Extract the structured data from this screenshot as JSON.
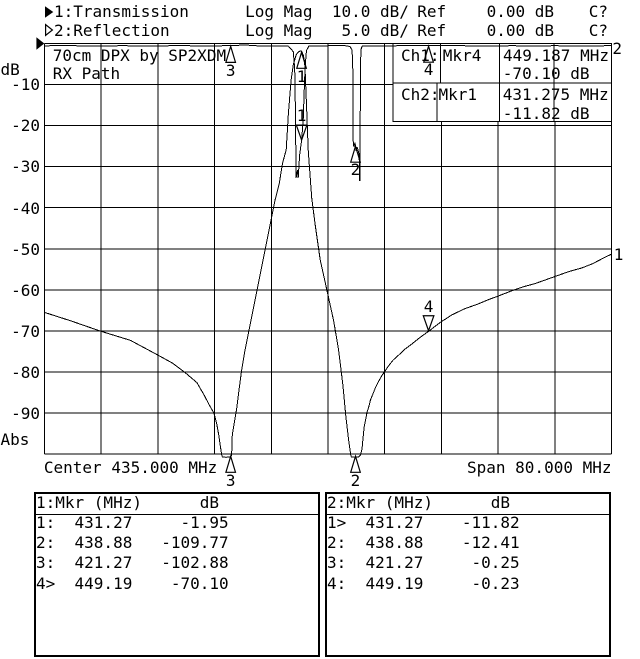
{
  "header": {
    "rows": [
      {
        "trace_marker": "filled-right-triangle",
        "channel": "1:Transmission",
        "format": "Log Mag",
        "scale": "10.0 dB/",
        "ref_label": "Ref",
        "ref_value": "0.00 dB",
        "cal_status": "C?"
      },
      {
        "trace_marker": "hollow-right-triangle",
        "channel": "2:Reflection",
        "format": "Log Mag",
        "scale": "5.0 dB/",
        "ref_label": "Ref",
        "ref_value": "0.00 dB",
        "cal_status": "C?"
      }
    ]
  },
  "readout": {
    "rows": [
      {
        "channel": "Ch1:",
        "marker": "Mkr4",
        "frequency": "449.187 MHz",
        "level": "-70.10 dB"
      },
      {
        "channel": "Ch2:",
        "marker": "Mkr1",
        "frequency": "431.275 MHz",
        "level": "-11.82 dB"
      }
    ]
  },
  "chart_data": {
    "type": "line",
    "title": "70cm DPX by SP2XDM",
    "subtitle": "RX Path",
    "x_axis": {
      "center": 435.0,
      "span": 80.0,
      "min": 395.0,
      "max": 475.0,
      "unit": "MHz",
      "divisions": 10,
      "center_label": "Center 435.000 MHz",
      "span_label": "Span 80.000 MHz"
    },
    "y_axis": {
      "top_label": "dB",
      "bottom_label": "Abs",
      "divisions": 10,
      "tick_labels": [
        "-10",
        "-20",
        "-30",
        "-40",
        "-50",
        "-60",
        "-70",
        "-80",
        "-90"
      ],
      "trace1_db_per_div": 10.0,
      "trace2_db_per_div": 5.0,
      "ref_db": 0.0
    },
    "series": [
      {
        "name": "Transmission",
        "trace": 1,
        "end_label": "1",
        "db_per_div": 10.0,
        "points": [
          [
            395.0,
            -65.5
          ],
          [
            398.6,
            -67.5
          ],
          [
            402.8,
            -70.0
          ],
          [
            407.1,
            -72.3
          ],
          [
            410.9,
            -75.8
          ],
          [
            413.1,
            -77.9
          ],
          [
            414.8,
            -80.1
          ],
          [
            416.5,
            -82.6
          ],
          [
            417.6,
            -85.9
          ],
          [
            418.2,
            -87.9
          ],
          [
            418.9,
            -90.0
          ],
          [
            419.3,
            -92.6
          ],
          [
            419.6,
            -95.6
          ],
          [
            419.8,
            -98.0
          ],
          [
            420.0,
            -100.2
          ],
          [
            420.1,
            -100.7
          ],
          [
            420.6,
            -100.8
          ],
          [
            421.2,
            -100.7
          ],
          [
            421.4,
            -100.4
          ],
          [
            421.5,
            -95.3
          ],
          [
            421.8,
            -92.2
          ],
          [
            422.1,
            -89.1
          ],
          [
            422.4,
            -85.0
          ],
          [
            422.8,
            -79.8
          ],
          [
            423.3,
            -74.6
          ],
          [
            423.9,
            -69.5
          ],
          [
            424.5,
            -64.3
          ],
          [
            425.1,
            -59.1
          ],
          [
            425.7,
            -53.9
          ],
          [
            426.3,
            -48.8
          ],
          [
            426.9,
            -43.6
          ],
          [
            427.5,
            -38.4
          ],
          [
            428.1,
            -34.3
          ],
          [
            428.6,
            -29.1
          ],
          [
            429.1,
            -25.9
          ],
          [
            429.4,
            -17.4
          ],
          [
            429.8,
            -8.9
          ],
          [
            430.1,
            -5.2
          ],
          [
            430.5,
            -2.8
          ],
          [
            430.8,
            -2.1
          ],
          [
            431.1,
            -1.8
          ],
          [
            431.3,
            -1.95
          ],
          [
            431.5,
            -2.8
          ],
          [
            431.7,
            -4.5
          ],
          [
            431.8,
            -7.7
          ],
          [
            432.0,
            -16.2
          ],
          [
            432.2,
            -25.9
          ],
          [
            432.7,
            -37.6
          ],
          [
            433.2,
            -44.2
          ],
          [
            433.9,
            -52.7
          ],
          [
            435.0,
            -61.3
          ],
          [
            435.8,
            -67.6
          ],
          [
            436.5,
            -74.7
          ],
          [
            437.1,
            -83.2
          ],
          [
            437.5,
            -90.5
          ],
          [
            437.9,
            -96.6
          ],
          [
            438.2,
            -100.2
          ],
          [
            438.3,
            -100.7
          ],
          [
            438.8,
            -100.8
          ],
          [
            439.3,
            -100.7
          ],
          [
            439.6,
            -100.2
          ],
          [
            439.8,
            -98.8
          ],
          [
            439.9,
            -97.0
          ],
          [
            440.0,
            -95.3
          ],
          [
            440.1,
            -93.5
          ],
          [
            440.3,
            -91.7
          ],
          [
            440.5,
            -89.9
          ],
          [
            440.8,
            -88.2
          ],
          [
            441.0,
            -86.8
          ],
          [
            441.3,
            -85.5
          ],
          [
            441.7,
            -83.8
          ],
          [
            442.1,
            -82.4
          ],
          [
            442.6,
            -80.9
          ],
          [
            443.0,
            -79.9
          ],
          [
            443.6,
            -78.4
          ],
          [
            444.2,
            -77.1
          ],
          [
            444.9,
            -76.0
          ],
          [
            445.9,
            -74.4
          ],
          [
            446.9,
            -73.1
          ],
          [
            448.0,
            -71.6
          ],
          [
            449.2,
            -70.1
          ],
          [
            450.8,
            -68.0
          ],
          [
            452.5,
            -66.1
          ],
          [
            454.3,
            -64.6
          ],
          [
            456.1,
            -63.5
          ],
          [
            457.8,
            -62.3
          ],
          [
            458.9,
            -61.6
          ],
          [
            460.7,
            -60.4
          ],
          [
            462.5,
            -59.3
          ],
          [
            464.2,
            -58.5
          ],
          [
            466.0,
            -57.4
          ],
          [
            467.3,
            -56.6
          ],
          [
            469.1,
            -55.5
          ],
          [
            470.8,
            -54.7
          ],
          [
            472.4,
            -53.6
          ],
          [
            473.7,
            -52.4
          ],
          [
            475.0,
            -51.3
          ]
        ]
      },
      {
        "name": "Reflection",
        "trace": 2,
        "end_label": "2",
        "db_per_div": 5.0,
        "points": [
          [
            395.0,
            -0.28
          ],
          [
            398.0,
            -0.26
          ],
          [
            402.0,
            -0.3
          ],
          [
            406.0,
            -0.27
          ],
          [
            410.0,
            -0.3
          ],
          [
            414.0,
            -0.26
          ],
          [
            418.0,
            -0.3
          ],
          [
            421.27,
            -0.25
          ],
          [
            423.3,
            -0.18
          ],
          [
            425.0,
            -0.28
          ],
          [
            427.0,
            -0.3
          ],
          [
            429.0,
            -0.32
          ],
          [
            429.4,
            -0.3
          ],
          [
            429.9,
            -0.8
          ],
          [
            430.1,
            -1.0
          ],
          [
            430.3,
            -3.1
          ],
          [
            430.4,
            -8.1
          ],
          [
            430.5,
            -16.4
          ],
          [
            430.7,
            -15.4
          ],
          [
            430.8,
            -16.4
          ],
          [
            431.0,
            -13.6
          ],
          [
            431.275,
            -11.82
          ],
          [
            431.5,
            -9.3
          ],
          [
            431.7,
            -4.4
          ],
          [
            431.9,
            -1.4
          ],
          [
            432.0,
            -0.8
          ],
          [
            432.3,
            -0.32
          ],
          [
            434.0,
            -0.28
          ],
          [
            436.0,
            -0.27
          ],
          [
            437.4,
            -0.27
          ],
          [
            438.1,
            -0.37
          ],
          [
            438.4,
            -0.8
          ],
          [
            438.5,
            -3.2
          ],
          [
            438.54,
            -11.8
          ],
          [
            438.65,
            -12.6
          ],
          [
            438.8,
            -12.1
          ],
          [
            438.88,
            -12.41
          ],
          [
            438.98,
            -13.1
          ],
          [
            439.1,
            -12.6
          ],
          [
            439.25,
            -13.0
          ],
          [
            439.4,
            -13.6
          ],
          [
            439.45,
            -16.7
          ],
          [
            439.52,
            -16.7
          ],
          [
            439.56,
            -6.9
          ],
          [
            439.6,
            -2.0
          ],
          [
            439.7,
            -0.55
          ],
          [
            439.85,
            -0.3
          ],
          [
            441.0,
            -0.28
          ],
          [
            444.0,
            -0.28
          ],
          [
            447.0,
            -0.26
          ],
          [
            449.19,
            -0.23
          ],
          [
            452.0,
            -0.26
          ],
          [
            455.0,
            -0.28
          ],
          [
            458.0,
            -0.3
          ],
          [
            461.0,
            -0.27
          ],
          [
            464.0,
            -0.3
          ],
          [
            467.0,
            -0.27
          ],
          [
            470.0,
            -0.3
          ],
          [
            473.0,
            -0.28
          ],
          [
            475.0,
            -0.27
          ]
        ]
      }
    ],
    "plot_markers": [
      {
        "trace": 1,
        "label": "1",
        "mhz": 431.27,
        "db": -1.95,
        "active": false
      },
      {
        "trace": 1,
        "label": "2",
        "mhz": 438.88,
        "db": -109.77,
        "active": false
      },
      {
        "trace": 1,
        "label": "3",
        "mhz": 421.27,
        "db": -102.88,
        "active": false
      },
      {
        "trace": 1,
        "label": "4",
        "mhz": 449.19,
        "db": -70.1,
        "active": true
      },
      {
        "trace": 2,
        "label": "1",
        "mhz": 431.275,
        "db": -11.82,
        "active": true
      },
      {
        "trace": 2,
        "label": "2",
        "mhz": 438.88,
        "db": -12.41,
        "active": false
      },
      {
        "trace": 2,
        "label": "3",
        "mhz": 421.27,
        "db": -0.25,
        "active": false
      },
      {
        "trace": 2,
        "label": "4",
        "mhz": 449.19,
        "db": -0.23,
        "active": false
      }
    ]
  },
  "marker_tables": [
    {
      "title": "1:Mkr (MHz)",
      "db_col": "dB",
      "rows": [
        [
          "1:",
          "431.27",
          "-1.95"
        ],
        [
          "2:",
          "438.88",
          "-109.77"
        ],
        [
          "3:",
          "421.27",
          "-102.88"
        ],
        [
          "4>",
          "449.19",
          "-70.10"
        ]
      ]
    },
    {
      "title": "2:Mkr (MHz)",
      "db_col": "dB",
      "rows": [
        [
          "1>",
          "431.27",
          "-11.82"
        ],
        [
          "2:",
          "438.88",
          "-12.41"
        ],
        [
          "3:",
          "421.27",
          "-0.25"
        ],
        [
          "4:",
          "449.19",
          "-0.23"
        ]
      ]
    }
  ],
  "colors": {
    "foreground": "#000000",
    "background": "#ffffff"
  }
}
